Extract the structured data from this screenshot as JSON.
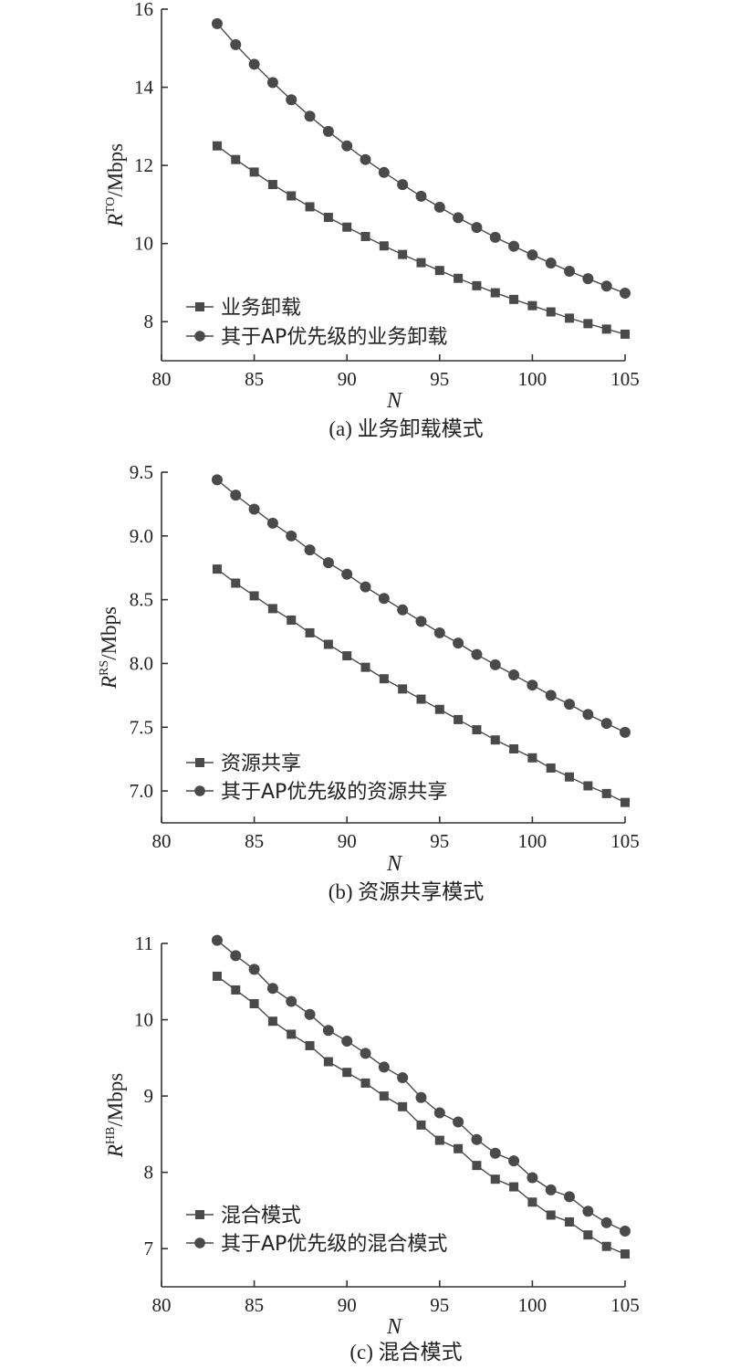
{
  "colors": {
    "series": "#4a4a4a",
    "axis": "#333333",
    "text": "#222222"
  },
  "chart_data": [
    {
      "type": "line",
      "caption": "(a) 业务卸载模式",
      "xlabel": "N",
      "ylabel": {
        "symbol": "R",
        "superscript": "TO",
        "unit": "/Mbps"
      },
      "xlim": [
        80,
        105
      ],
      "ylim": [
        7,
        16
      ],
      "xticks": [
        80,
        85,
        90,
        95,
        100,
        105
      ],
      "yticks": [
        8,
        10,
        12,
        14,
        16
      ],
      "yticklabels": [
        "8",
        "10",
        "12",
        "14",
        "16"
      ],
      "legend_position": "bottom-left",
      "x": [
        83,
        84,
        85,
        86,
        87,
        88,
        89,
        90,
        91,
        92,
        93,
        94,
        95,
        96,
        97,
        98,
        99,
        100,
        101,
        102,
        103,
        104,
        105
      ],
      "series": [
        {
          "name": "业务卸载",
          "marker": "square",
          "values": [
            12.5,
            12.15,
            11.83,
            11.51,
            11.22,
            10.94,
            10.67,
            10.42,
            10.18,
            9.94,
            9.72,
            9.51,
            9.31,
            9.11,
            8.92,
            8.74,
            8.57,
            8.41,
            8.25,
            8.09,
            7.95,
            7.81,
            7.68
          ]
        },
        {
          "name": "其于AP优先级的业务卸载",
          "marker": "circle",
          "values": [
            15.63,
            15.09,
            14.59,
            14.12,
            13.68,
            13.26,
            12.87,
            12.5,
            12.15,
            11.82,
            11.51,
            11.21,
            10.93,
            10.66,
            10.41,
            10.16,
            9.93,
            9.71,
            9.5,
            9.29,
            9.1,
            8.91,
            8.73
          ]
        }
      ]
    },
    {
      "type": "line",
      "caption": "(b) 资源共享模式",
      "xlabel": "N",
      "ylabel": {
        "symbol": "R",
        "superscript": "RS",
        "unit": "/Mbps"
      },
      "xlim": [
        80,
        105
      ],
      "ylim": [
        6.75,
        9.5
      ],
      "xticks": [
        80,
        85,
        90,
        95,
        100,
        105
      ],
      "yticks": [
        7.0,
        7.5,
        8.0,
        8.5,
        9.0,
        9.5
      ],
      "yticklabels": [
        "7.0",
        "7.5",
        "8.0",
        "8.5",
        "9.0",
        "9.5"
      ],
      "legend_position": "bottom-left",
      "x": [
        83,
        84,
        85,
        86,
        87,
        88,
        89,
        90,
        91,
        92,
        93,
        94,
        95,
        96,
        97,
        98,
        99,
        100,
        101,
        102,
        103,
        104,
        105
      ],
      "series": [
        {
          "name": "资源共享",
          "marker": "square",
          "values": [
            8.74,
            8.63,
            8.53,
            8.43,
            8.34,
            8.24,
            8.15,
            8.06,
            7.97,
            7.88,
            7.8,
            7.72,
            7.64,
            7.56,
            7.48,
            7.4,
            7.33,
            7.26,
            7.18,
            7.11,
            7.04,
            6.98,
            6.91
          ]
        },
        {
          "name": "其于AP优先级的资源共享",
          "marker": "circle",
          "values": [
            9.44,
            9.32,
            9.21,
            9.1,
            9.0,
            8.89,
            8.79,
            8.7,
            8.6,
            8.51,
            8.42,
            8.33,
            8.24,
            8.16,
            8.07,
            7.99,
            7.91,
            7.83,
            7.75,
            7.68,
            7.6,
            7.53,
            7.46
          ]
        }
      ]
    },
    {
      "type": "line",
      "caption": "(c) 混合模式",
      "xlabel": "N",
      "ylabel": {
        "symbol": "R",
        "superscript": "HB",
        "unit": "/Mbps"
      },
      "xlim": [
        80,
        105
      ],
      "ylim": [
        6.5,
        11
      ],
      "xticks": [
        80,
        85,
        90,
        95,
        100,
        105
      ],
      "yticks": [
        7,
        8,
        9,
        10,
        11
      ],
      "yticklabels": [
        "7",
        "8",
        "9",
        "10",
        "11"
      ],
      "legend_position": "bottom-left",
      "x": [
        83,
        84,
        85,
        86,
        87,
        88,
        89,
        90,
        91,
        92,
        93,
        94,
        95,
        96,
        97,
        98,
        99,
        100,
        101,
        102,
        103,
        104,
        105
      ],
      "series": [
        {
          "name": "混合模式",
          "marker": "square",
          "values": [
            10.57,
            10.39,
            10.21,
            9.98,
            9.81,
            9.66,
            9.45,
            9.31,
            9.17,
            9.0,
            8.86,
            8.62,
            8.42,
            8.31,
            8.09,
            7.91,
            7.81,
            7.61,
            7.44,
            7.35,
            7.18,
            7.03,
            6.93
          ]
        },
        {
          "name": "其于AP优先级的混合模式",
          "marker": "circle",
          "values": [
            11.04,
            10.84,
            10.66,
            10.41,
            10.24,
            10.07,
            9.86,
            9.72,
            9.56,
            9.38,
            9.24,
            8.98,
            8.78,
            8.66,
            8.43,
            8.25,
            8.15,
            7.93,
            7.77,
            7.68,
            7.49,
            7.34,
            7.23
          ]
        }
      ]
    }
  ]
}
